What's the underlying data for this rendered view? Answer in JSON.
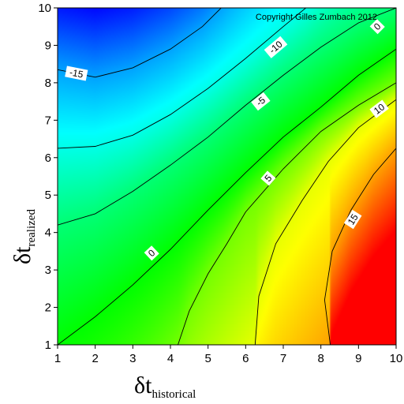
{
  "chart_data": {
    "type": "heatmap",
    "subtype": "filled-contour",
    "annotation": "Copyright Gilles Zumbach 2012",
    "xlabel": {
      "symbol": "δt",
      "subscript": "historical"
    },
    "ylabel": {
      "symbol": "δt",
      "subscript": "realized"
    },
    "xlim": [
      1,
      10
    ],
    "ylim": [
      1,
      10
    ],
    "x_ticks": [
      1,
      2,
      3,
      4,
      5,
      6,
      7,
      8,
      9,
      10
    ],
    "y_ticks": [
      1,
      2,
      3,
      4,
      5,
      6,
      7,
      8,
      9,
      10
    ],
    "colormap": [
      "#0000ff",
      "#00ffff",
      "#00ff00",
      "#ffff00",
      "#ff0000"
    ],
    "value_range": [
      -22,
      22
    ],
    "contour_levels": [
      -15,
      -10,
      -5,
      0,
      5,
      10,
      15
    ],
    "contours": [
      {
        "level": -15,
        "points": [
          [
            1,
            8.35
          ],
          [
            2,
            8.15
          ],
          [
            3,
            8.4
          ],
          [
            4,
            8.9
          ],
          [
            4.85,
            9.5
          ],
          [
            5.35,
            10
          ]
        ],
        "label_at": [
          1.5,
          8.25
        ]
      },
      {
        "level": -10,
        "points": [
          [
            1,
            6.25
          ],
          [
            2,
            6.3
          ],
          [
            3,
            6.6
          ],
          [
            4,
            7.15
          ],
          [
            5,
            7.85
          ],
          [
            6,
            8.65
          ],
          [
            7,
            9.5
          ],
          [
            7.6,
            10
          ]
        ],
        "label_at": [
          6.8,
          8.95
        ]
      },
      {
        "level": -5,
        "points": [
          [
            1,
            4.2
          ],
          [
            2,
            4.5
          ],
          [
            3,
            5.1
          ],
          [
            4,
            5.8
          ],
          [
            5,
            6.55
          ],
          [
            6,
            7.4
          ],
          [
            7,
            8.2
          ],
          [
            8,
            8.95
          ],
          [
            9,
            9.6
          ],
          [
            10,
            10
          ]
        ],
        "label_at": [
          6.4,
          7.5
        ]
      },
      {
        "level": 0,
        "points": [
          [
            1,
            1
          ],
          [
            2,
            1.75
          ],
          [
            3,
            2.6
          ],
          [
            4,
            3.55
          ],
          [
            5,
            4.6
          ],
          [
            6,
            5.6
          ],
          [
            7,
            6.55
          ],
          [
            8,
            7.35
          ],
          [
            9,
            8.2
          ],
          [
            10,
            8.9
          ]
        ],
        "label_at": [
          3.5,
          3.45
        ]
      },
      {
        "level": 5,
        "points": [
          [
            4.2,
            1
          ],
          [
            4.5,
            1.9
          ],
          [
            5,
            2.9
          ],
          [
            5.5,
            3.7
          ],
          [
            6,
            4.55
          ],
          [
            7,
            5.7
          ],
          [
            8,
            6.7
          ],
          [
            9,
            7.4
          ],
          [
            10,
            8.0
          ]
        ],
        "label_at": [
          6.6,
          5.45
        ]
      },
      {
        "level": 10,
        "points": [
          [
            6.25,
            1
          ],
          [
            6.35,
            2.3
          ],
          [
            6.8,
            3.7
          ],
          [
            7.5,
            4.85
          ],
          [
            8.2,
            5.9
          ],
          [
            9,
            6.8
          ],
          [
            10,
            7.55
          ]
        ],
        "label_at": [
          9.55,
          7.3
        ]
      },
      {
        "level": 15,
        "points": [
          [
            8.25,
            1
          ],
          [
            8.1,
            2.2
          ],
          [
            8.3,
            3.5
          ],
          [
            8.8,
            4.6
          ],
          [
            9.4,
            5.55
          ],
          [
            10,
            6.25
          ]
        ],
        "label_at": [
          8.85,
          4.35
        ]
      }
    ],
    "extra_labels": [
      {
        "text": "0",
        "at": [
          9.5,
          9.5
        ]
      }
    ]
  }
}
